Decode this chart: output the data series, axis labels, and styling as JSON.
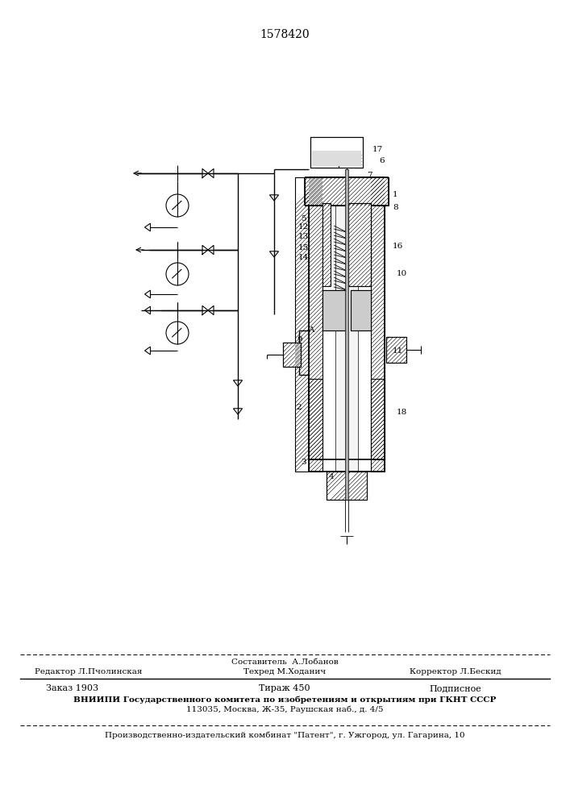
{
  "patent_number": "1578420",
  "background_color": "#ffffff",
  "line_color": "#000000",
  "footer_line1_left": "Редактор Л.Пчолинская",
  "footer_line1_center": "Составитель  А.Лобанов",
  "footer_line1_right": "Корректор Л.Бескид",
  "footer_line2_center": "Техред М.Ходанич",
  "footer_order": "Заказ 1903",
  "footer_tirazh": "Тираж 450",
  "footer_podpisnoe": "Подписное",
  "footer_vniipii": "ВНИИПИ Государственного комитета по изобретениям и открытиям при ГКНТ СССР",
  "footer_address": "113035, Москва, Ж-35, Раушская наб., д. 4/5",
  "footer_patent": "Производственно-издательский комбинат \"Патент\", г. Ужгород, ул. Гагарина, 10"
}
